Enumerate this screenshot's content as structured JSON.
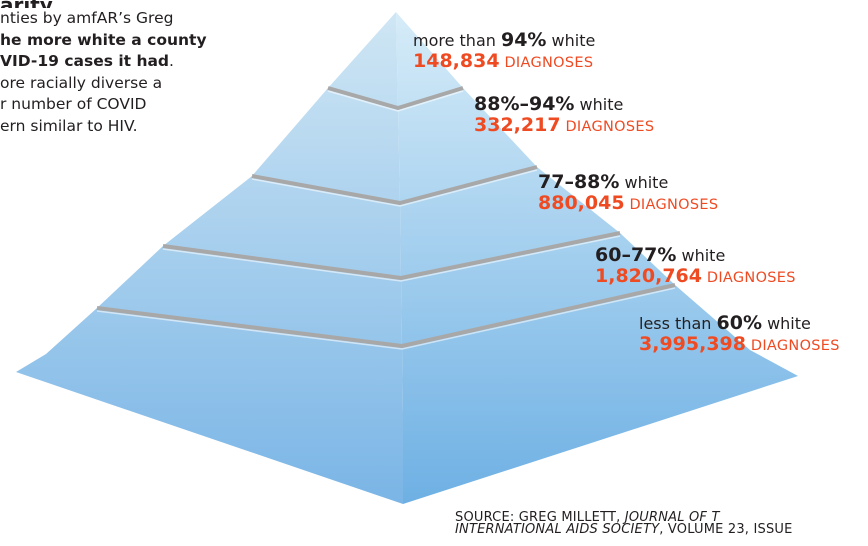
{
  "intro": {
    "heading": "arity",
    "line1": "nties by amfAR’s Greg",
    "line2_bold": "he more white a county",
    "line3_bold": "VID-19 cases it had",
    "line3_tail": ".",
    "line4": "ore racially diverse a",
    "line5": "r number of COVID",
    "line6": "ern similar to HIV."
  },
  "chart_data": {
    "type": "pyramid",
    "tiers": [
      {
        "pre": "more than ",
        "pct": "94%",
        "post": " white",
        "value": 148834,
        "value_label": "148,834",
        "unit": " DIAGNOSES"
      },
      {
        "pre": "",
        "pct": "88%–94%",
        "post": " white",
        "value": 332217,
        "value_label": "332,217",
        "unit": " DIAGNOSES"
      },
      {
        "pre": "",
        "pct": "77–88%",
        "post": " white",
        "value": 880045,
        "value_label": "880,045",
        "unit": " DIAGNOSES"
      },
      {
        "pre": "",
        "pct": "60–77%",
        "post": " white",
        "value": 1820764,
        "value_label": "1,820,764",
        "unit": " DIAGNOSES"
      },
      {
        "pre": "less than ",
        "pct": "60%",
        "post": " white",
        "value": 3995398,
        "value_label": "3,995,398",
        "unit": " DIAGNOSES"
      }
    ]
  },
  "source": {
    "line1_plain": "SOURCE: GREG MILLETT, ",
    "line1_italic": "JOURNAL OF T",
    "line2_italic": "INTERNATIONAL AIDS SOCIETY",
    "line2_plain": ", VOLUME 23, ISSUE"
  },
  "colors": {
    "accent": "#ef4b23",
    "text": "#231f20",
    "pyramid_top": "#cfe6f4",
    "pyramid_bottom": "#7ab5e6",
    "separator": "#a8a8a8"
  }
}
